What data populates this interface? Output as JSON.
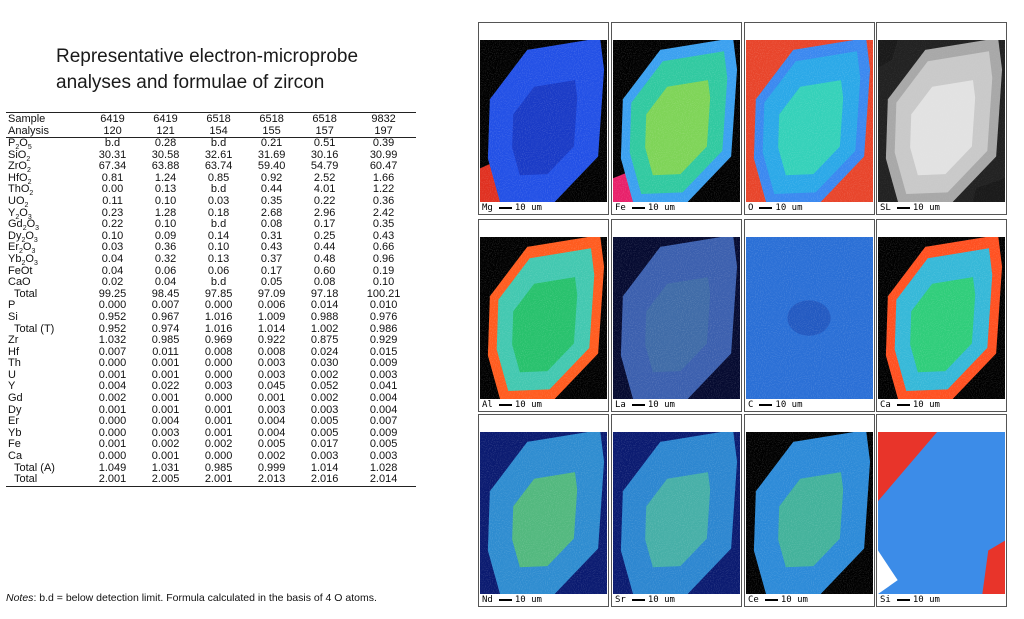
{
  "title": "Representative electron-microprobe analyses and formulae of zircon",
  "table": {
    "head": [
      [
        "Sample",
        "6419",
        "6419",
        "6518",
        "6518",
        "6518",
        "9832"
      ],
      [
        "Analysis",
        "120",
        "121",
        "154",
        "155",
        "157",
        "197"
      ]
    ],
    "oxides": [
      [
        "P2O5",
        "b.d",
        "0.28",
        "b.d",
        "0.21",
        "0.51",
        "0.39"
      ],
      [
        "SiO2",
        "30.31",
        "30.58",
        "32.61",
        "31.69",
        "30.16",
        "30.99"
      ],
      [
        "ZrO2",
        "67.34",
        "63.88",
        "63.74",
        "59.40",
        "54.79",
        "60.47"
      ],
      [
        "HfO2",
        "0.81",
        "1.24",
        "0.85",
        "0.92",
        "2.52",
        "1.66"
      ],
      [
        "ThO2",
        "0.00",
        "0.13",
        "b.d",
        "0.44",
        "4.01",
        "1.22"
      ],
      [
        "UO2",
        "0.11",
        "0.10",
        "0.03",
        "0.35",
        "0.22",
        "0.36"
      ],
      [
        "Y2O3",
        "0.23",
        "1.28",
        "0.18",
        "2.68",
        "2.96",
        "2.42"
      ],
      [
        "Gd2O3",
        "0.22",
        "0.10",
        "b.d",
        "0.08",
        "0.17",
        "0.35"
      ],
      [
        "Dy2O3",
        "0.10",
        "0.09",
        "0.14",
        "0.31",
        "0.25",
        "0.43"
      ],
      [
        "Er2O3",
        "0.03",
        "0.36",
        "0.10",
        "0.43",
        "0.44",
        "0.66"
      ],
      [
        "Yb2O3",
        "0.04",
        "0.32",
        "0.13",
        "0.37",
        "0.48",
        "0.96"
      ],
      [
        "FeOt",
        "0.04",
        "0.06",
        "0.06",
        "0.17",
        "0.60",
        "0.19"
      ],
      [
        "CaO",
        "0.02",
        "0.04",
        "b.d",
        "0.05",
        "0.08",
        "0.10"
      ],
      [
        "Total",
        "99.25",
        "98.45",
        "97.85",
        "97.09",
        "97.18",
        "100.21"
      ]
    ],
    "cations_t": [
      [
        "P",
        "0.000",
        "0.007",
        "0.000",
        "0.006",
        "0.014",
        "0.010"
      ],
      [
        "Si",
        "0.952",
        "0.967",
        "1.016",
        "1.009",
        "0.988",
        "0.976"
      ],
      [
        "Total (T)",
        "0.952",
        "0.974",
        "1.016",
        "1.014",
        "1.002",
        "0.986"
      ]
    ],
    "cations_a": [
      [
        "Zr",
        "1.032",
        "0.985",
        "0.969",
        "0.922",
        "0.875",
        "0.929"
      ],
      [
        "Hf",
        "0.007",
        "0.011",
        "0.008",
        "0.008",
        "0.024",
        "0.015"
      ],
      [
        "Th",
        "0.000",
        "0.001",
        "0.000",
        "0.003",
        "0.030",
        "0.009"
      ],
      [
        "U",
        "0.001",
        "0.001",
        "0.000",
        "0.003",
        "0.002",
        "0.003"
      ],
      [
        "Y",
        "0.004",
        "0.022",
        "0.003",
        "0.045",
        "0.052",
        "0.041"
      ],
      [
        "Gd",
        "0.002",
        "0.001",
        "0.000",
        "0.001",
        "0.002",
        "0.004"
      ],
      [
        "Dy",
        "0.001",
        "0.001",
        "0.001",
        "0.003",
        "0.003",
        "0.004"
      ],
      [
        "Er",
        "0.000",
        "0.004",
        "0.001",
        "0.004",
        "0.005",
        "0.007"
      ],
      [
        "Yb",
        "0.000",
        "0.003",
        "0.001",
        "0.004",
        "0.005",
        "0.009"
      ],
      [
        "Fe",
        "0.001",
        "0.002",
        "0.002",
        "0.005",
        "0.017",
        "0.005"
      ],
      [
        "Ca",
        "0.000",
        "0.001",
        "0.000",
        "0.002",
        "0.003",
        "0.003"
      ],
      [
        "Total (A)",
        "1.049",
        "1.031",
        "0.985",
        "0.999",
        "1.014",
        "1.028"
      ],
      [
        "Total",
        "2.001",
        "2.005",
        "2.001",
        "2.013",
        "2.016",
        "2.014"
      ]
    ]
  },
  "note": {
    "label": "Notes",
    "text": ": b.d = below detection limit. Formula calculated in the basis of 4 O atoms."
  },
  "maps": {
    "scale": "10 um",
    "panels": [
      {
        "label": "Mg",
        "style": "mg"
      },
      {
        "label": "Fe",
        "style": "fe"
      },
      {
        "label": "O",
        "style": "o"
      },
      {
        "label": "SL",
        "style": "sl"
      },
      {
        "label": "Al",
        "style": "al"
      },
      {
        "label": "La",
        "style": "la"
      },
      {
        "label": "C",
        "style": "c"
      },
      {
        "label": "Ca",
        "style": "ca"
      },
      {
        "label": "Nd",
        "style": "nd"
      },
      {
        "label": "Sr",
        "style": "sr"
      },
      {
        "label": "Ce",
        "style": "ce"
      },
      {
        "label": "Si",
        "style": "si"
      }
    ]
  }
}
